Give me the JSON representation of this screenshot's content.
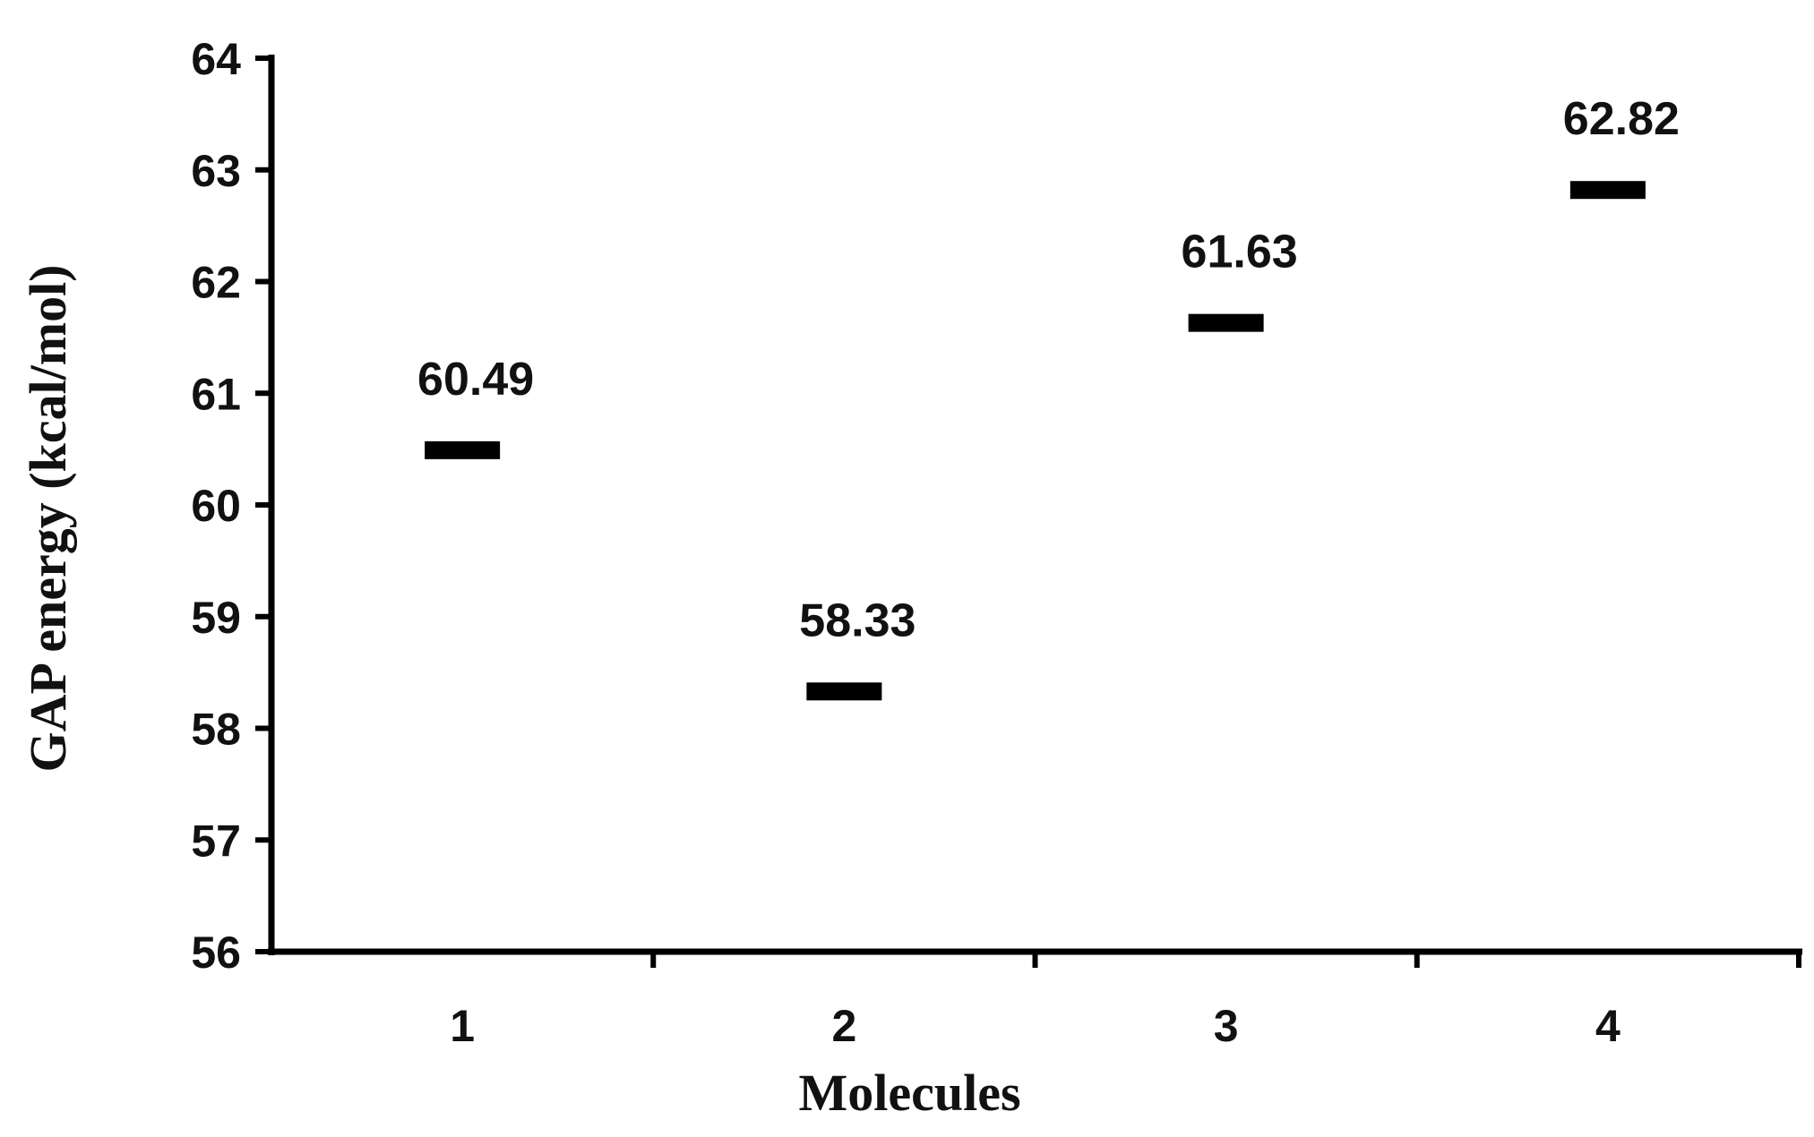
{
  "chart_data": {
    "type": "scatter",
    "marker": "dash",
    "categories": [
      "1",
      "2",
      "3",
      "4"
    ],
    "values": [
      60.49,
      58.33,
      61.63,
      62.82
    ],
    "data_labels": [
      "60.49",
      "58.33",
      "61.63",
      "62.82"
    ],
    "xlabel": "Molecules",
    "ylabel": "GAP energy (kcal/mol)",
    "ylim": [
      56,
      64
    ],
    "yticks": [
      "56",
      "57",
      "58",
      "59",
      "60",
      "61",
      "62",
      "63",
      "64"
    ],
    "grid": false,
    "legend": "none",
    "color": "#000000"
  }
}
